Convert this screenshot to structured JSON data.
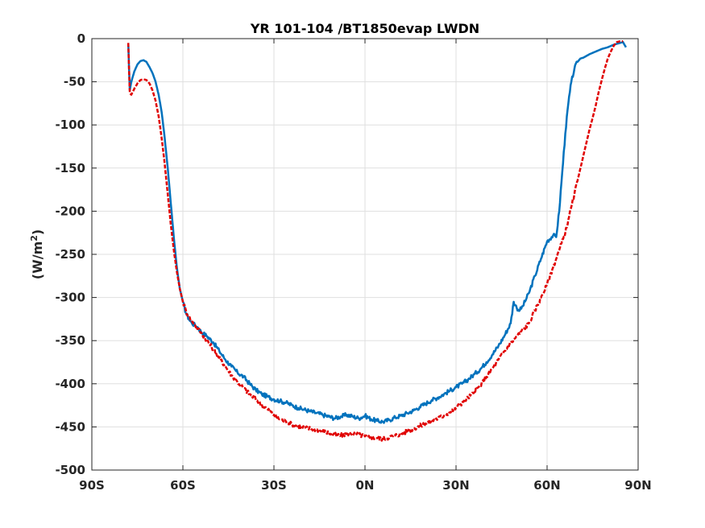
{
  "chart_data": {
    "type": "line",
    "title": "YR 101-104 /BT1850evap LWDN",
    "xlabel": "",
    "ylabel_main": "(W/m",
    "ylabel_sup": "2",
    "ylabel_close": ")",
    "xlim": [
      -90,
      90
    ],
    "ylim": [
      -500,
      0
    ],
    "x_ticks": [
      -90,
      -60,
      -30,
      0,
      30,
      60,
      90
    ],
    "x_tick_labels": [
      "90S",
      "60S",
      "30S",
      "0N",
      "30N",
      "60N",
      "90N"
    ],
    "y_ticks": [
      0,
      -50,
      -100,
      -150,
      -200,
      -250,
      -300,
      -350,
      -400,
      -450,
      -500
    ],
    "y_tick_labels": [
      "0",
      "-50",
      "-100",
      "-150",
      "-200",
      "-250",
      "-300",
      "-350",
      "-400",
      "-450",
      "-500"
    ],
    "grid": true,
    "series": [
      {
        "color": "#0072BD",
        "style": "solid",
        "x": [
          -78,
          -77.5,
          -77,
          -76,
          -75,
          -74,
          -73,
          -72,
          -71,
          -70,
          -69,
          -68,
          -67,
          -66,
          -65,
          -64,
          -63,
          -62,
          -61,
          -60,
          -59,
          -58,
          -57,
          -56,
          -55,
          -54,
          -52,
          -50,
          -48,
          -46,
          -44,
          -42,
          -40,
          -38,
          -36,
          -34,
          -32,
          -30,
          -28,
          -26,
          -24,
          -22,
          -20,
          -18,
          -16,
          -14,
          -12,
          -10,
          -8,
          -6,
          -4,
          -2,
          0,
          2,
          4,
          6,
          8,
          10,
          12,
          14,
          16,
          18,
          20,
          22,
          24,
          26,
          28,
          30,
          32,
          34,
          36,
          38,
          40,
          42,
          44,
          46,
          48,
          49,
          50,
          51,
          52,
          54,
          56,
          58,
          60,
          62,
          63,
          64,
          65,
          66,
          67,
          68,
          69,
          70,
          71,
          72,
          73,
          74,
          76,
          78,
          80,
          82,
          84,
          85,
          86
        ],
        "y": [
          -5,
          -60,
          -50,
          -38,
          -30,
          -26,
          -25,
          -27,
          -33,
          -40,
          -50,
          -65,
          -85,
          -115,
          -150,
          -190,
          -230,
          -265,
          -290,
          -305,
          -318,
          -325,
          -330,
          -332,
          -335,
          -340,
          -345,
          -352,
          -362,
          -372,
          -380,
          -387,
          -392,
          -400,
          -407,
          -412,
          -415,
          -418,
          -420,
          -422,
          -425,
          -428,
          -430,
          -432,
          -434,
          -436,
          -438,
          -440,
          -438,
          -436,
          -438,
          -440,
          -437,
          -441,
          -443,
          -444,
          -442,
          -439,
          -437,
          -434,
          -431,
          -427,
          -423,
          -419,
          -416,
          -412,
          -408,
          -404,
          -400,
          -395,
          -389,
          -383,
          -375,
          -366,
          -356,
          -344,
          -330,
          -305,
          -312,
          -315,
          -310,
          -295,
          -275,
          -255,
          -235,
          -228,
          -230,
          -200,
          -155,
          -110,
          -75,
          -50,
          -35,
          -27,
          -23,
          -22,
          -20,
          -18,
          -15,
          -12,
          -10,
          -7,
          -5,
          -4,
          -10
        ]
      },
      {
        "color": "#E00000",
        "style": "dashed",
        "x": [
          -78,
          -77.5,
          -77,
          -76,
          -75,
          -74,
          -73,
          -72,
          -71,
          -70,
          -69,
          -68,
          -67,
          -66,
          -65,
          -64,
          -63,
          -62,
          -61,
          -60,
          -59,
          -58,
          -57,
          -56,
          -55,
          -54,
          -52,
          -50,
          -48,
          -46,
          -44,
          -42,
          -40,
          -38,
          -36,
          -34,
          -32,
          -30,
          -28,
          -26,
          -24,
          -22,
          -20,
          -18,
          -16,
          -14,
          -12,
          -10,
          -8,
          -6,
          -4,
          -2,
          0,
          2,
          4,
          6,
          8,
          10,
          12,
          14,
          16,
          18,
          20,
          22,
          24,
          26,
          28,
          30,
          32,
          34,
          36,
          38,
          40,
          42,
          44,
          46,
          48,
          50,
          52,
          54,
          56,
          58,
          60,
          62,
          64,
          66,
          67,
          68,
          69,
          70,
          71,
          72,
          73,
          74,
          75,
          76,
          77,
          78,
          79,
          80,
          81,
          82,
          83,
          84,
          85
        ],
        "y": [
          -5,
          -63,
          -65,
          -58,
          -52,
          -48,
          -47,
          -48,
          -52,
          -60,
          -72,
          -90,
          -115,
          -145,
          -180,
          -215,
          -245,
          -270,
          -290,
          -305,
          -315,
          -323,
          -328,
          -332,
          -336,
          -341,
          -350,
          -360,
          -370,
          -380,
          -390,
          -398,
          -405,
          -412,
          -418,
          -424,
          -430,
          -436,
          -441,
          -444,
          -447,
          -449,
          -451,
          -452,
          -453,
          -455,
          -457,
          -459,
          -460,
          -458,
          -457,
          -459,
          -461,
          -462,
          -463,
          -464,
          -462,
          -460,
          -458,
          -455,
          -452,
          -449,
          -446,
          -443,
          -440,
          -437,
          -433,
          -428,
          -422,
          -416,
          -410,
          -402,
          -392,
          -382,
          -372,
          -362,
          -353,
          -345,
          -338,
          -330,
          -315,
          -300,
          -285,
          -265,
          -245,
          -225,
          -210,
          -195,
          -180,
          -165,
          -150,
          -135,
          -120,
          -105,
          -92,
          -78,
          -62,
          -48,
          -35,
          -23,
          -15,
          -8,
          -4,
          -3,
          -3
        ]
      }
    ]
  }
}
